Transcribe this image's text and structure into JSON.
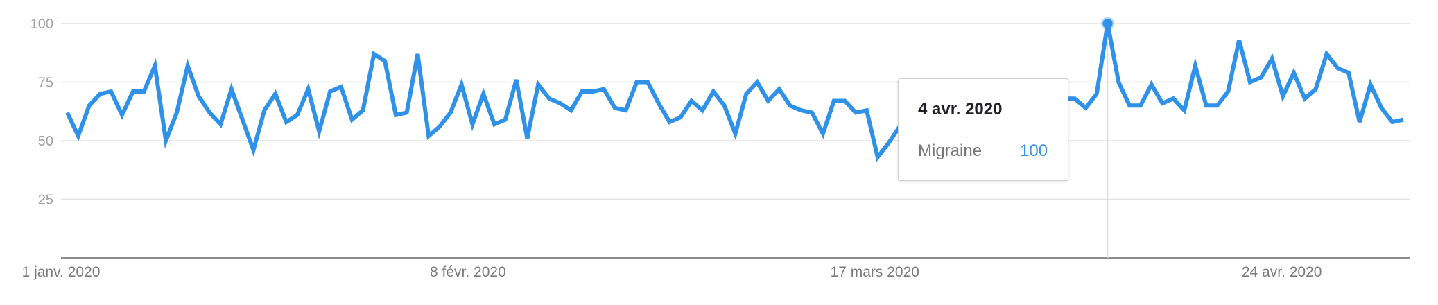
{
  "colors": {
    "line": "#2f91e8",
    "grid": "#e2e2e2",
    "axis": "#8c8c8c",
    "tick_text": "#a0a0a0",
    "hover_line": "#dcdcdc"
  },
  "chart_data": {
    "type": "line",
    "ylim": [
      0,
      100
    ],
    "y_ticks": [
      "100",
      "75",
      "50",
      "25"
    ],
    "y_tick_values": [
      100,
      75,
      50,
      25
    ],
    "x_start": "2020-01-01",
    "x_end": "2020-05-06",
    "x_ticks": [
      {
        "label": "1 janv. 2020",
        "date": "2020-01-01"
      },
      {
        "label": "8 févr. 2020",
        "date": "2020-02-08"
      },
      {
        "label": "17 mars 2020",
        "date": "2020-03-17"
      },
      {
        "label": "24 avr. 2020",
        "date": "2020-04-24"
      }
    ],
    "grid": true,
    "series": [
      {
        "name": "Migraine",
        "color": "#2f91e8",
        "values": [
          62,
          52,
          65,
          70,
          71,
          61,
          71,
          71,
          82,
          50,
          62,
          82,
          69,
          62,
          57,
          72,
          59,
          46,
          63,
          70,
          58,
          61,
          72,
          54,
          71,
          73,
          59,
          63,
          87,
          84,
          61,
          62,
          87,
          52,
          56,
          62,
          74,
          57,
          70,
          57,
          59,
          76,
          51,
          74,
          68,
          66,
          63,
          71,
          71,
          72,
          64,
          63,
          75,
          75,
          66,
          58,
          60,
          67,
          63,
          71,
          65,
          53,
          70,
          75,
          67,
          72,
          65,
          63,
          62,
          53,
          67,
          67,
          62,
          63,
          43,
          49,
          56,
          53,
          54,
          57,
          69,
          68,
          59,
          71,
          53,
          73,
          74,
          75,
          72,
          74,
          68,
          68,
          68,
          64,
          70,
          100,
          75,
          65,
          65,
          74,
          66,
          68,
          63,
          82,
          65,
          65,
          71,
          93,
          75,
          77,
          85,
          69,
          79,
          68,
          72,
          87,
          81,
          79,
          58,
          74,
          64,
          58,
          59
        ]
      }
    ],
    "tooltip": {
      "date": "4 avr. 2020",
      "series": "Migraine",
      "value": "100",
      "index": 95
    }
  }
}
